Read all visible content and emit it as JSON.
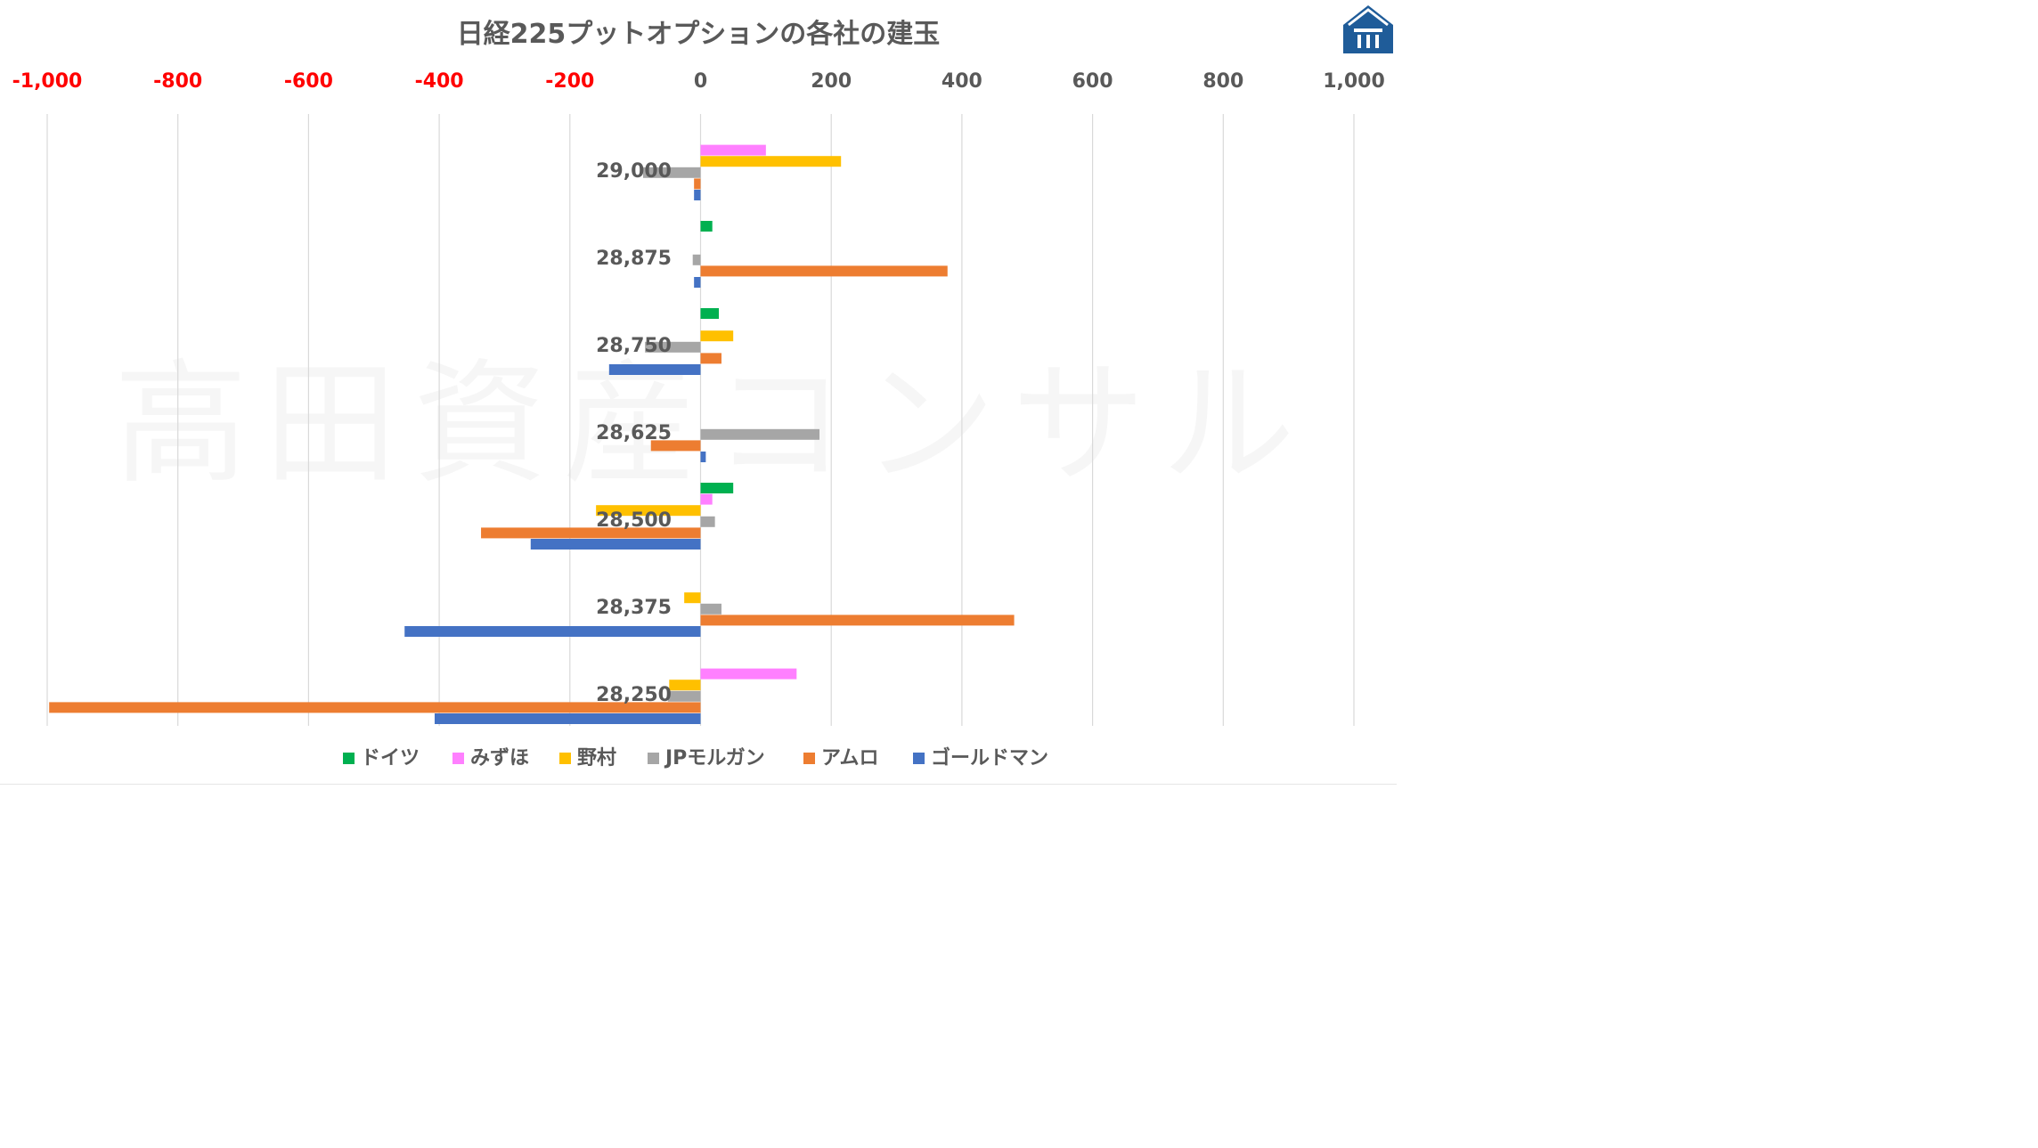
{
  "chart_data": {
    "type": "bar",
    "orientation": "horizontal",
    "title": "日経225プットオプションの各社の建玉",
    "watermark": "高田資産コンサル",
    "xlim": [
      -1000,
      1000
    ],
    "xticks": [
      -1000,
      -800,
      -600,
      -400,
      -200,
      0,
      200,
      400,
      600,
      800,
      1000
    ],
    "xtick_labels": [
      "-1,000",
      "-800",
      "-600",
      "-400",
      "-200",
      "0",
      "200",
      "400",
      "600",
      "800",
      "1,000"
    ],
    "negative_tick_color": "#ff0000",
    "positive_tick_color": "#595959",
    "categories": [
      "29,000",
      "28,875",
      "28,750",
      "28,625",
      "28,500",
      "28,375",
      "28,250"
    ],
    "series": [
      {
        "name": "ドイツ",
        "color": "#00b050",
        "values": [
          0,
          18,
          28,
          0,
          50,
          0,
          0
        ]
      },
      {
        "name": "みずほ",
        "color": "#ff80ff",
        "values": [
          100,
          0,
          0,
          0,
          18,
          0,
          147
        ]
      },
      {
        "name": "野村",
        "color": "#ffc000",
        "values": [
          215,
          0,
          50,
          0,
          -160,
          -25,
          -48
        ]
      },
      {
        "name": "JPモルガン",
        "color": "#a6a6a6",
        "values": [
          -88,
          -12,
          -85,
          182,
          22,
          32,
          -50
        ]
      },
      {
        "name": "アムロ",
        "color": "#ed7d31",
        "values": [
          -10,
          378,
          32,
          -76,
          -336,
          480,
          -997
        ]
      },
      {
        "name": "ゴールドマン",
        "color": "#4472c4",
        "values": [
          -10,
          -10,
          -140,
          8,
          -260,
          -453,
          -407
        ]
      }
    ],
    "grid": "vertical",
    "legend_position": "bottom"
  },
  "logo": {
    "name": "takata-logo",
    "color": "#1f5c99"
  }
}
